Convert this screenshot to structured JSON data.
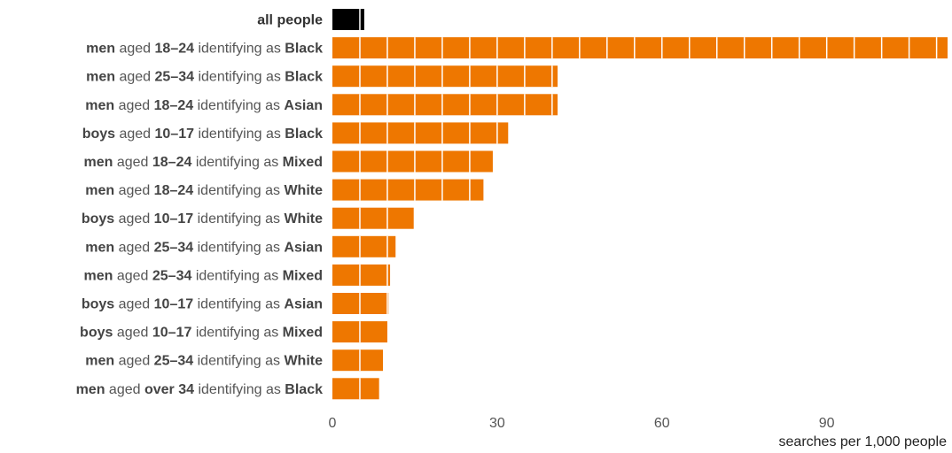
{
  "chart_data": {
    "type": "bar",
    "orientation": "horizontal",
    "xlabel": "searches per 1,000 people",
    "xlim": [
      0,
      112
    ],
    "xticks": [
      0,
      30,
      60,
      90
    ],
    "grid": false,
    "highlight_color": "#000000",
    "bar_color": "#ee7700",
    "segment_divider_color": "#ffffff",
    "categories": [
      {
        "parts": [
          {
            "text": "all people",
            "bold": true
          }
        ]
      },
      {
        "parts": [
          {
            "text": "men",
            "bold": true
          },
          {
            "text": " aged ",
            "bold": false
          },
          {
            "text": "18–24",
            "bold": true
          },
          {
            "text": " identifying as ",
            "bold": false
          },
          {
            "text": "Black",
            "bold": true
          }
        ]
      },
      {
        "parts": [
          {
            "text": "men",
            "bold": true
          },
          {
            "text": " aged ",
            "bold": false
          },
          {
            "text": "25–34",
            "bold": true
          },
          {
            "text": " identifying as ",
            "bold": false
          },
          {
            "text": "Black",
            "bold": true
          }
        ]
      },
      {
        "parts": [
          {
            "text": "men",
            "bold": true
          },
          {
            "text": " aged ",
            "bold": false
          },
          {
            "text": "18–24",
            "bold": true
          },
          {
            "text": " identifying as ",
            "bold": false
          },
          {
            "text": "Asian",
            "bold": true
          }
        ]
      },
      {
        "parts": [
          {
            "text": "boys",
            "bold": true
          },
          {
            "text": " aged ",
            "bold": false
          },
          {
            "text": "10–17",
            "bold": true
          },
          {
            "text": " identifying as ",
            "bold": false
          },
          {
            "text": "Black",
            "bold": true
          }
        ]
      },
      {
        "parts": [
          {
            "text": "men",
            "bold": true
          },
          {
            "text": " aged ",
            "bold": false
          },
          {
            "text": "18–24",
            "bold": true
          },
          {
            "text": " identifying as ",
            "bold": false
          },
          {
            "text": "Mixed",
            "bold": true
          }
        ]
      },
      {
        "parts": [
          {
            "text": "men",
            "bold": true
          },
          {
            "text": " aged ",
            "bold": false
          },
          {
            "text": "18–24",
            "bold": true
          },
          {
            "text": " identifying as ",
            "bold": false
          },
          {
            "text": "White",
            "bold": true
          }
        ]
      },
      {
        "parts": [
          {
            "text": "boys",
            "bold": true
          },
          {
            "text": " aged ",
            "bold": false
          },
          {
            "text": "10–17",
            "bold": true
          },
          {
            "text": " identifying as ",
            "bold": false
          },
          {
            "text": "White",
            "bold": true
          }
        ]
      },
      {
        "parts": [
          {
            "text": "men",
            "bold": true
          },
          {
            "text": " aged ",
            "bold": false
          },
          {
            "text": "25–34",
            "bold": true
          },
          {
            "text": " identifying as ",
            "bold": false
          },
          {
            "text": "Asian",
            "bold": true
          }
        ]
      },
      {
        "parts": [
          {
            "text": "men",
            "bold": true
          },
          {
            "text": " aged ",
            "bold": false
          },
          {
            "text": "25–34",
            "bold": true
          },
          {
            "text": " identifying as ",
            "bold": false
          },
          {
            "text": "Mixed",
            "bold": true
          }
        ]
      },
      {
        "parts": [
          {
            "text": "boys",
            "bold": true
          },
          {
            "text": " aged ",
            "bold": false
          },
          {
            "text": "10–17",
            "bold": true
          },
          {
            "text": " identifying as ",
            "bold": false
          },
          {
            "text": "Asian",
            "bold": true
          }
        ]
      },
      {
        "parts": [
          {
            "text": "boys",
            "bold": true
          },
          {
            "text": " aged ",
            "bold": false
          },
          {
            "text": "10–17",
            "bold": true
          },
          {
            "text": " identifying as ",
            "bold": false
          },
          {
            "text": "Mixed",
            "bold": true
          }
        ]
      },
      {
        "parts": [
          {
            "text": "men",
            "bold": true
          },
          {
            "text": " aged ",
            "bold": false
          },
          {
            "text": "25–34",
            "bold": true
          },
          {
            "text": " identifying as ",
            "bold": false
          },
          {
            "text": "White",
            "bold": true
          }
        ]
      },
      {
        "parts": [
          {
            "text": "men",
            "bold": true
          },
          {
            "text": " aged ",
            "bold": false
          },
          {
            "text": "over 34",
            "bold": true
          },
          {
            "text": " identifying as ",
            "bold": false
          },
          {
            "text": "Black",
            "bold": true
          }
        ]
      }
    ],
    "values": [
      5.8,
      112,
      41,
      41,
      32,
      29.2,
      27.5,
      14.8,
      11.5,
      10.5,
      10.2,
      10.0,
      9.2,
      8.5
    ],
    "highlight": [
      true,
      false,
      false,
      false,
      false,
      false,
      false,
      false,
      false,
      false,
      false,
      false,
      false,
      false
    ],
    "segment_unit": 5
  }
}
